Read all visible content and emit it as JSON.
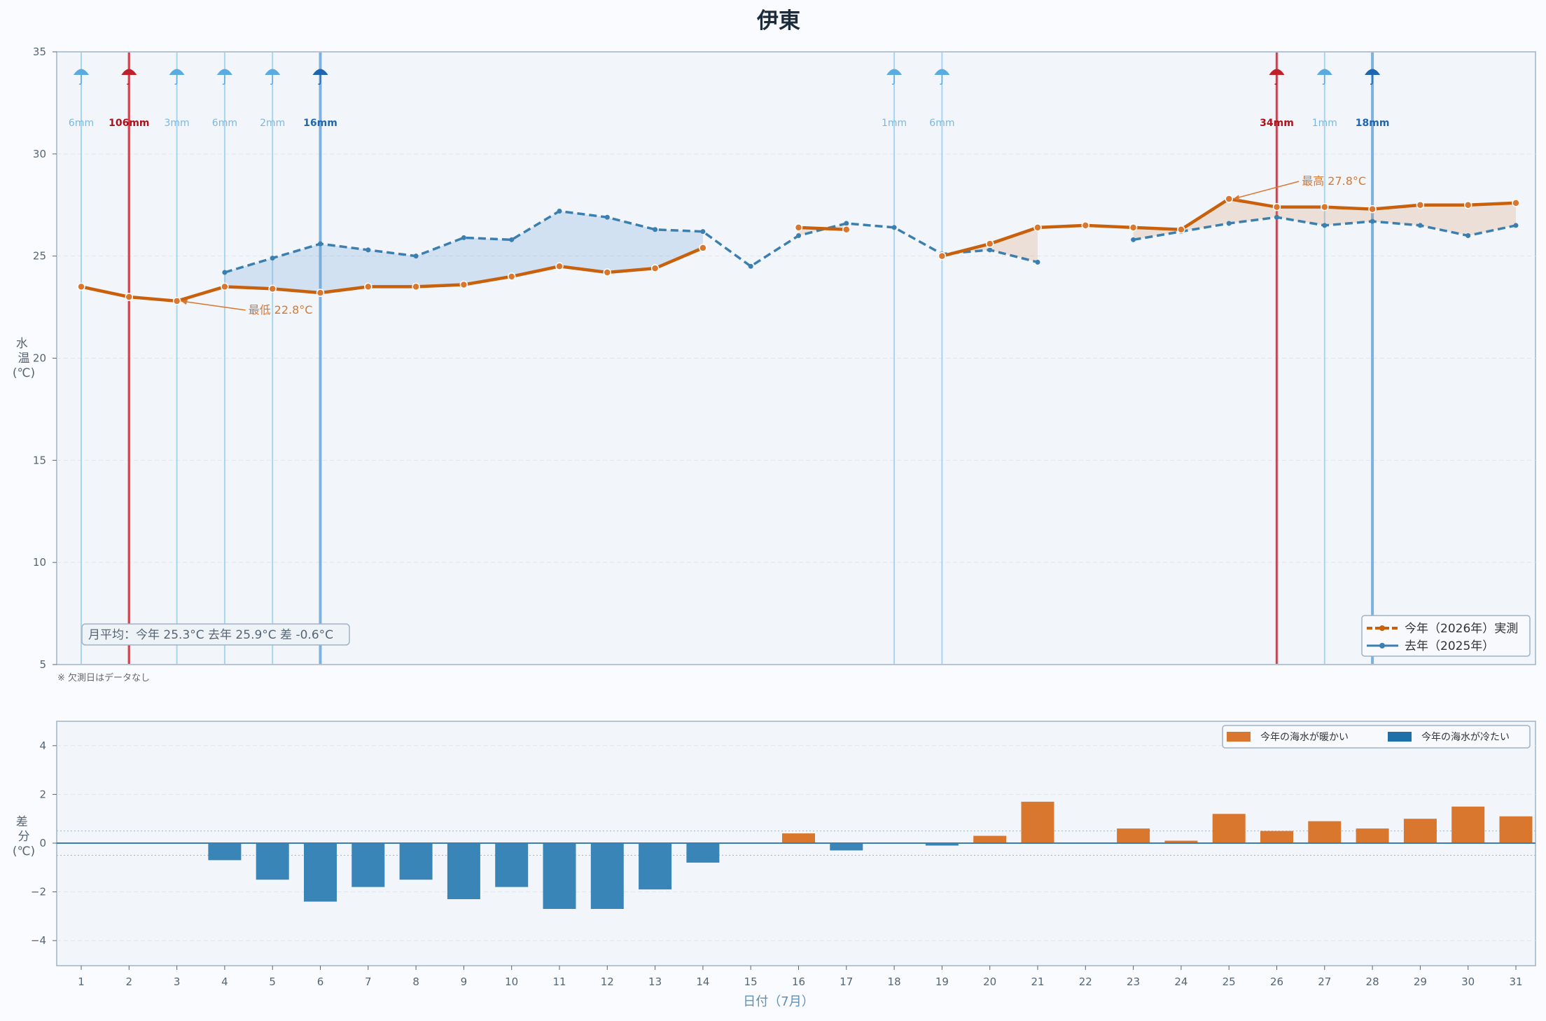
{
  "chart_data": [
    {
      "type": "line",
      "title": "伊東",
      "ylabel": "水温(℃)",
      "ylim": [
        5,
        35
      ],
      "yticks": [
        5,
        10,
        15,
        20,
        25,
        30,
        35
      ],
      "x": [
        1,
        2,
        3,
        4,
        5,
        6,
        7,
        8,
        9,
        10,
        11,
        12,
        13,
        14,
        15,
        16,
        17,
        18,
        19,
        20,
        21,
        22,
        23,
        24,
        25,
        26,
        27,
        28,
        29,
        30,
        31
      ],
      "series": [
        {
          "name": "今年（2026年）実測",
          "color": "#c8600c",
          "values": [
            23.5,
            23.0,
            22.8,
            23.5,
            23.4,
            23.2,
            23.5,
            23.5,
            23.6,
            24.0,
            24.5,
            24.2,
            24.4,
            25.4,
            null,
            26.4,
            26.3,
            null,
            25.0,
            25.6,
            26.4,
            26.5,
            26.4,
            26.3,
            27.8,
            27.4,
            27.4,
            27.3,
            27.5,
            27.5,
            27.6
          ]
        },
        {
          "name": "去年（2025年）",
          "color": "#3a7fb0",
          "values": [
            null,
            null,
            null,
            24.2,
            24.9,
            25.6,
            25.3,
            25.0,
            25.9,
            25.8,
            27.2,
            26.9,
            26.3,
            26.2,
            24.5,
            26.0,
            26.6,
            26.4,
            25.1,
            25.3,
            24.7,
            null,
            25.8,
            26.2,
            26.6,
            26.9,
            26.5,
            26.7,
            26.5,
            26.0,
            26.5
          ]
        }
      ],
      "rain": [
        {
          "day": 1,
          "label": "6mm",
          "level": "light"
        },
        {
          "day": 2,
          "label": "106mm",
          "level": "heavy"
        },
        {
          "day": 3,
          "label": "3mm",
          "level": "light"
        },
        {
          "day": 4,
          "label": "6mm",
          "level": "light"
        },
        {
          "day": 5,
          "label": "2mm",
          "level": "light"
        },
        {
          "day": 6,
          "label": "16mm",
          "level": "moderate"
        },
        {
          "day": 18,
          "label": "1mm",
          "level": "light"
        },
        {
          "day": 19,
          "label": "6mm",
          "level": "light"
        },
        {
          "day": 26,
          "label": "34mm",
          "level": "heavy"
        },
        {
          "day": 27,
          "label": "1mm",
          "level": "light"
        },
        {
          "day": 28,
          "label": "18mm",
          "level": "moderate"
        }
      ],
      "annotations": [
        {
          "day": 3,
          "value": 22.8,
          "text": "最低 22.8°C"
        },
        {
          "day": 25,
          "value": 27.8,
          "text": "最高 27.8°C"
        }
      ],
      "monthly_avg_text": "月平均：今年 25.3°C  去年 25.9°C  差 -0.6°C",
      "note": "※ 欠測日はデータなし",
      "legend_position": "bottom-right",
      "grid": true
    },
    {
      "type": "bar",
      "ylabel": "差分(℃)",
      "xlabel": "日付（7月）",
      "ylim": [
        -5,
        5
      ],
      "yticks": [
        -4,
        -2,
        0,
        2,
        4
      ],
      "categories": [
        "1",
        "2",
        "3",
        "4",
        "5",
        "6",
        "7",
        "8",
        "9",
        "10",
        "11",
        "12",
        "13",
        "14",
        "15",
        "16",
        "17",
        "18",
        "19",
        "20",
        "21",
        "22",
        "23",
        "24",
        "25",
        "26",
        "27",
        "28",
        "29",
        "30",
        "31"
      ],
      "values": [
        null,
        null,
        null,
        -0.7,
        -1.5,
        -2.4,
        -1.8,
        -1.5,
        -2.3,
        -1.8,
        -2.7,
        -2.7,
        -1.9,
        -0.8,
        null,
        0.4,
        -0.3,
        null,
        -0.1,
        0.3,
        1.7,
        null,
        0.6,
        0.1,
        1.2,
        0.5,
        0.9,
        0.6,
        1.0,
        1.5,
        1.1
      ],
      "legend": [
        {
          "label": "今年の海水が暖かい",
          "color": "#d9772f"
        },
        {
          "label": "今年の海水が冷たい",
          "color": "#3a85b8"
        }
      ],
      "legend_position": "top-right",
      "grid": true
    }
  ]
}
